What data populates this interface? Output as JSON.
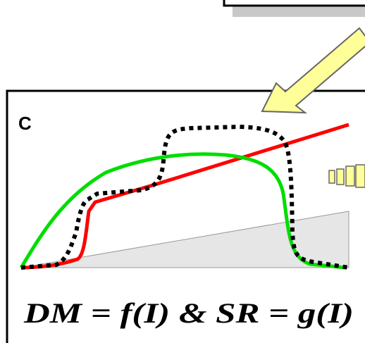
{
  "panel": {
    "label": "C",
    "equation": "DM = f(I) & SR = g(I)"
  },
  "colors": {
    "red_line": "#ff0000",
    "green_curve": "#00dd00",
    "dotted_curve": "#000000",
    "ramp_fill": "#e6e6e6",
    "arrow_fill": "#ffff99",
    "panel_border": "#000000"
  },
  "icons": [
    "arrow-icon",
    "partial-slice-icon"
  ]
}
